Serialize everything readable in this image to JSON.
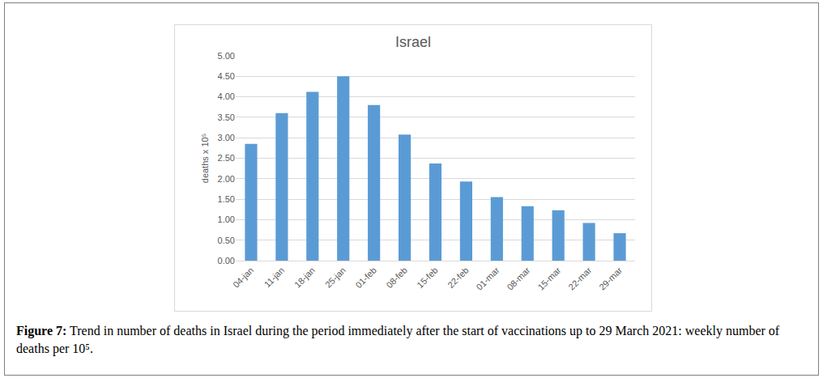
{
  "chart_data": {
    "type": "bar",
    "title": "Israel",
    "y_label": "deaths x 10⁵",
    "categories": [
      "04-jan",
      "11-jan",
      "18-jan",
      "25-jan",
      "01-feb",
      "08-feb",
      "15-feb",
      "22-feb",
      "01-mar",
      "08-mar",
      "15-mar",
      "22-mar",
      "29-mar"
    ],
    "values": [
      2.85,
      3.6,
      4.12,
      4.5,
      3.8,
      3.08,
      2.37,
      1.93,
      1.55,
      1.33,
      1.23,
      0.92,
      0.67
    ],
    "color": "#5b9bd5",
    "ylim": [
      0,
      5
    ],
    "yticks": [
      {
        "value": 0,
        "label": "0.00"
      },
      {
        "value": 0.5,
        "label": "0.50"
      },
      {
        "value": 1,
        "label": "1.00"
      },
      {
        "value": 1.5,
        "label": "1.50"
      },
      {
        "value": 2,
        "label": "2.00"
      },
      {
        "value": 2.5,
        "label": "2.50"
      },
      {
        "value": 3,
        "label": "3.00"
      },
      {
        "value": 3.5,
        "label": "3.50"
      },
      {
        "value": 4,
        "label": "4.00"
      },
      {
        "value": 4.5,
        "label": "4.50"
      },
      {
        "value": 5,
        "label": "5.00"
      }
    ],
    "grid": true
  },
  "caption": {
    "label": "Figure 7:",
    "text": "Trend in number of deaths in Israel during the period immediately after the start of vaccinations up to 29 March 2021: weekly number of deaths per 10⁵."
  }
}
